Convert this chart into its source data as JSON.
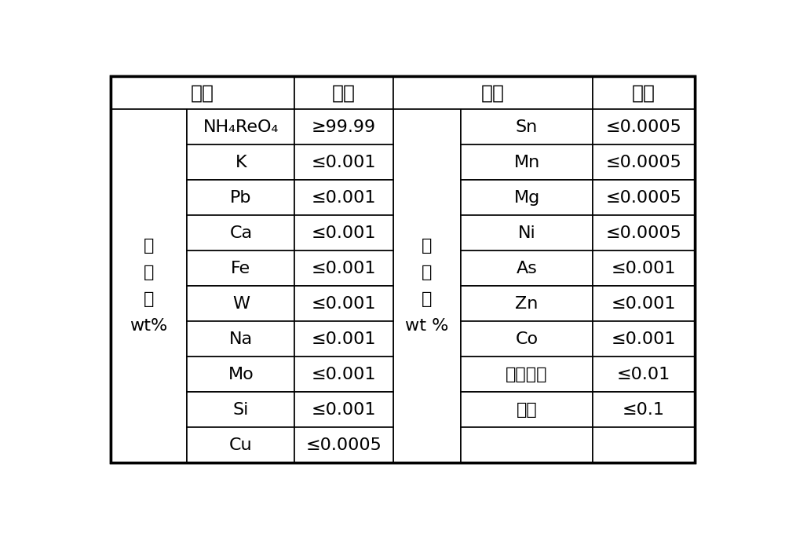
{
  "background_color": "#ffffff",
  "border_color": "#000000",
  "text_color": "#000000",
  "left_group_label": [
    "单",
    "位",
    "：",
    "wt%"
  ],
  "right_group_label": [
    "单",
    "位",
    "：",
    "wt %"
  ],
  "left_rows": [
    [
      "NH₄ReO₄",
      "≥99.99"
    ],
    [
      "K",
      "≤0.001"
    ],
    [
      "Pb",
      "≤0.001"
    ],
    [
      "Ca",
      "≤0.001"
    ],
    [
      "Fe",
      "≤0.001"
    ],
    [
      "W",
      "≤0.001"
    ],
    [
      "Na",
      "≤0.001"
    ],
    [
      "Mo",
      "≤0.001"
    ],
    [
      "Si",
      "≤0.001"
    ],
    [
      "Cu",
      "≤0.0005"
    ]
  ],
  "right_rows": [
    [
      "Sn",
      "≤0.0005"
    ],
    [
      "Mn",
      "≤0.0005"
    ],
    [
      "Mg",
      "≤0.0005"
    ],
    [
      "Ni",
      "≤0.0005"
    ],
    [
      "As",
      "≤0.001"
    ],
    [
      "Zn",
      "≤0.001"
    ],
    [
      "Co",
      "≤0.001"
    ],
    [
      "杂质总和",
      "≤0.01"
    ],
    [
      "水分",
      "≤0.1"
    ],
    [
      "",
      ""
    ]
  ],
  "header_left": "项目",
  "header_std_left": "标准",
  "header_right": "项目",
  "header_std_right": "标准",
  "font_size": 16,
  "header_font_size": 18,
  "outer_lw": 2.5,
  "inner_lw": 1.2
}
